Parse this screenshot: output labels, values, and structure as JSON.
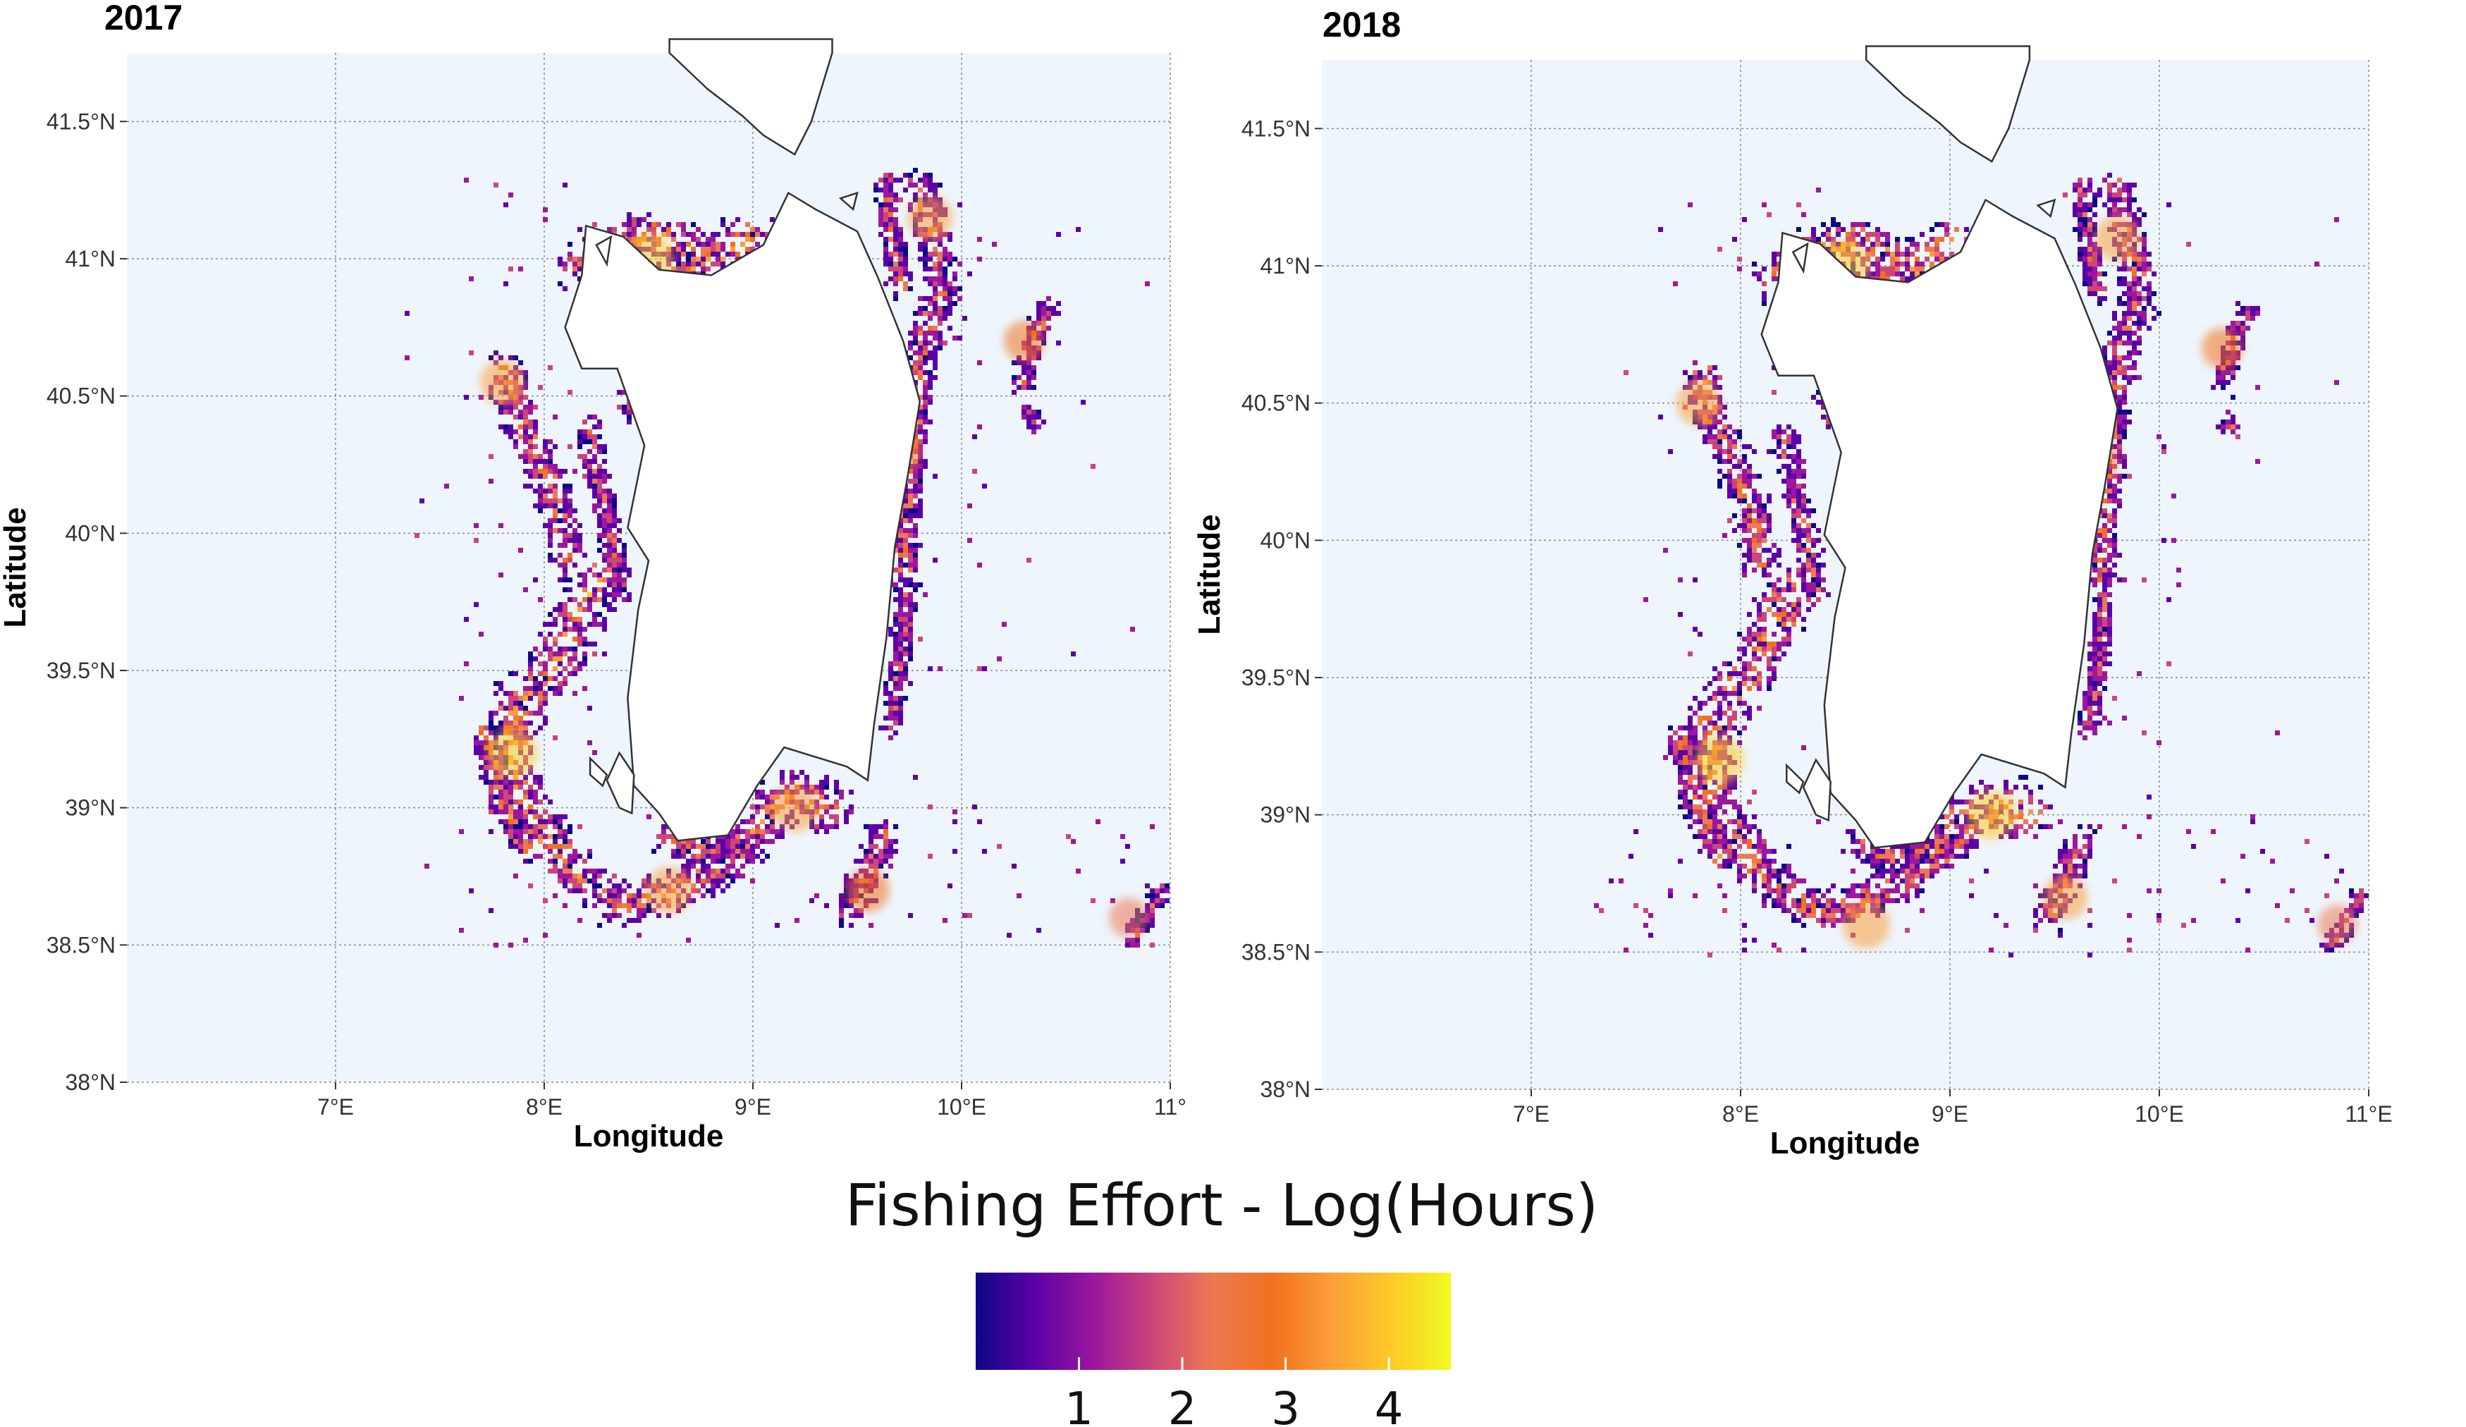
{
  "figure": {
    "legend": {
      "title": "Fishing Effort - Log(Hours)",
      "ticks": [
        1,
        2,
        3,
        4
      ],
      "range": [
        0,
        4.6
      ],
      "colors": [
        "#0d0887",
        "#5c01a6",
        "#9c179e",
        "#cc4778",
        "#ed7953",
        "#f1711f",
        "#fb9f3a",
        "#fdca26",
        "#f0f921"
      ]
    },
    "colors": {
      "sea": "#eef5fd",
      "land": "#ffffff",
      "coast": "#333333",
      "grid": "#8a8a8a"
    }
  },
  "chart_data": [
    {
      "type": "heatmap",
      "title": "2017",
      "xlabel": "Longitude",
      "ylabel": "Latitude",
      "xlim": [
        6.0,
        11.0
      ],
      "ylim": [
        38.0,
        41.75
      ],
      "x_ticks": [
        7,
        8,
        9,
        10,
        11
      ],
      "x_tick_labels": [
        "7°E",
        "8°E",
        "9°E",
        "10°E",
        "11°"
      ],
      "y_ticks": [
        38,
        38.5,
        39,
        39.5,
        40,
        40.5,
        41,
        41.5
      ],
      "y_tick_labels": [
        "38°N",
        "38.5°N",
        "39°N",
        "39.5°N",
        "40°N",
        "40.5°N",
        "41°N",
        "41.5°N"
      ],
      "grid": true,
      "high_effort_areas": [
        {
          "lon": 8.5,
          "lat": 41.0,
          "effort": 4.0
        },
        {
          "lon": 7.85,
          "lat": 39.2,
          "effort": 3.8
        },
        {
          "lon": 9.2,
          "lat": 39.0,
          "effort": 3.6
        },
        {
          "lon": 7.8,
          "lat": 40.55,
          "effort": 3.2
        },
        {
          "lon": 9.85,
          "lat": 41.15,
          "effort": 3.2
        },
        {
          "lon": 8.6,
          "lat": 38.7,
          "effort": 3.4
        },
        {
          "lon": 9.7,
          "lat": 40.3,
          "effort": 3.0
        },
        {
          "lon": 9.55,
          "lat": 38.7,
          "effort": 3.0
        },
        {
          "lon": 10.3,
          "lat": 40.7,
          "effort": 2.6
        },
        {
          "lon": 10.8,
          "lat": 38.6,
          "effort": 2.4
        }
      ]
    },
    {
      "type": "heatmap",
      "title": "2018",
      "xlabel": "Longitude",
      "ylabel": "Latitude",
      "xlim": [
        6.0,
        11.0
      ],
      "ylim": [
        38.0,
        41.75
      ],
      "x_ticks": [
        7,
        8,
        9,
        10,
        11
      ],
      "x_tick_labels": [
        "7°E",
        "8°E",
        "9°E",
        "10°E",
        "11°E"
      ],
      "y_ticks": [
        38,
        38.5,
        39,
        39.5,
        40,
        40.5,
        41,
        41.5
      ],
      "y_tick_labels": [
        "38°N",
        "38.5°N",
        "39°N",
        "39.5°N",
        "40°N",
        "40.5°N",
        "41°N",
        "41.5°N"
      ],
      "grid": true,
      "high_effort_areas": [
        {
          "lon": 8.5,
          "lat": 41.0,
          "effort": 4.0
        },
        {
          "lon": 7.9,
          "lat": 39.2,
          "effort": 3.8
        },
        {
          "lon": 9.2,
          "lat": 39.0,
          "effort": 3.8
        },
        {
          "lon": 7.8,
          "lat": 40.5,
          "effort": 3.2
        },
        {
          "lon": 9.8,
          "lat": 41.1,
          "effort": 3.2
        },
        {
          "lon": 8.6,
          "lat": 38.6,
          "effort": 3.6
        },
        {
          "lon": 9.7,
          "lat": 40.3,
          "effort": 3.0
        },
        {
          "lon": 9.55,
          "lat": 38.7,
          "effort": 3.2
        },
        {
          "lon": 10.3,
          "lat": 40.7,
          "effort": 2.6
        },
        {
          "lon": 10.85,
          "lat": 38.6,
          "effort": 2.4
        }
      ]
    }
  ]
}
